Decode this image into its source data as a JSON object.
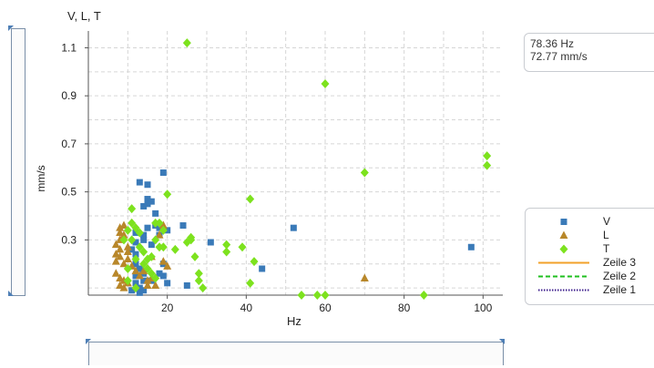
{
  "readout": {
    "frequency": "78.36 Hz",
    "amplitude": "72.77 mm/s"
  },
  "legend": [
    {
      "label": "V",
      "kind": "square",
      "color": "#3a7ab8"
    },
    {
      "label": "L",
      "kind": "triangle",
      "color": "#b8872a"
    },
    {
      "label": "T",
      "kind": "diamond",
      "color": "#7de21e"
    },
    {
      "label": "Zeile 3",
      "kind": "line-solid",
      "color": "#f2a12a"
    },
    {
      "label": "Zeile 2",
      "kind": "line-dashed",
      "color": "#1fbf1f"
    },
    {
      "label": "Zeile 1",
      "kind": "line-dotted",
      "color": "#3c1e8c"
    }
  ],
  "chart_data": {
    "type": "scatter",
    "title": "V, L, T",
    "xlabel": "Hz",
    "ylabel": "mm/s",
    "xlim": [
      0,
      105
    ],
    "ylim": [
      0.07,
      1.17
    ],
    "x_ticks": [
      20,
      40,
      60,
      80,
      100
    ],
    "y_ticks": [
      0.3,
      0.5,
      0.7,
      0.9,
      1.1
    ],
    "grid": true,
    "legend_position": "right",
    "series": [
      {
        "name": "V",
        "marker": "square",
        "color": "#3a7ab8",
        "points": [
          [
            11,
            0.26
          ],
          [
            12,
            0.29
          ],
          [
            12,
            0.33
          ],
          [
            12,
            0.24
          ],
          [
            13,
            0.54
          ],
          [
            14,
            0.44
          ],
          [
            14,
            0.32
          ],
          [
            15,
            0.53
          ],
          [
            15,
            0.47
          ],
          [
            15,
            0.45
          ],
          [
            15,
            0.35
          ],
          [
            14,
            0.3
          ],
          [
            16,
            0.46
          ],
          [
            16,
            0.28
          ],
          [
            17,
            0.41
          ],
          [
            17,
            0.36
          ],
          [
            18,
            0.32
          ],
          [
            18,
            0.35
          ],
          [
            19,
            0.58
          ],
          [
            19,
            0.2
          ],
          [
            20,
            0.34
          ],
          [
            19,
            0.15
          ],
          [
            12,
            0.2
          ],
          [
            13,
            0.18
          ],
          [
            14,
            0.16
          ],
          [
            13,
            0.1
          ],
          [
            14,
            0.09
          ],
          [
            13,
            0.08
          ],
          [
            11,
            0.09
          ],
          [
            12,
            0.12
          ],
          [
            14,
            0.13
          ],
          [
            12,
            0.15
          ],
          [
            16,
            0.13
          ],
          [
            18,
            0.16
          ],
          [
            20,
            0.12
          ],
          [
            24,
            0.36
          ],
          [
            25,
            0.11
          ],
          [
            31,
            0.29
          ],
          [
            44,
            0.18
          ],
          [
            52,
            0.35
          ],
          [
            97,
            0.27
          ]
        ]
      },
      {
        "name": "L",
        "marker": "triangle",
        "color": "#b8872a",
        "points": [
          [
            7,
            0.28
          ],
          [
            7,
            0.24
          ],
          [
            7,
            0.21
          ],
          [
            8,
            0.35
          ],
          [
            8,
            0.33
          ],
          [
            8,
            0.3
          ],
          [
            8,
            0.26
          ],
          [
            8,
            0.23
          ],
          [
            9,
            0.36
          ],
          [
            9,
            0.32
          ],
          [
            9,
            0.2
          ],
          [
            10,
            0.27
          ],
          [
            10,
            0.25
          ],
          [
            10,
            0.22
          ],
          [
            11,
            0.19
          ],
          [
            7,
            0.16
          ],
          [
            8,
            0.14
          ],
          [
            8,
            0.11
          ],
          [
            9,
            0.13
          ],
          [
            9,
            0.1
          ],
          [
            10,
            0.12
          ],
          [
            12,
            0.17
          ],
          [
            13,
            0.15
          ],
          [
            14,
            0.17
          ],
          [
            15,
            0.13
          ],
          [
            16,
            0.14
          ],
          [
            17,
            0.11
          ],
          [
            15,
            0.11
          ],
          [
            16,
            0.23
          ],
          [
            18,
            0.32
          ],
          [
            19,
            0.36
          ],
          [
            19,
            0.21
          ],
          [
            20,
            0.19
          ],
          [
            70,
            0.14
          ]
        ]
      },
      {
        "name": "T",
        "marker": "diamond",
        "color": "#7de21e",
        "points": [
          [
            9,
            0.3
          ],
          [
            10,
            0.34
          ],
          [
            10,
            0.18
          ],
          [
            10,
            0.13
          ],
          [
            11,
            0.43
          ],
          [
            11,
            0.37
          ],
          [
            11,
            0.3
          ],
          [
            12,
            0.35
          ],
          [
            12,
            0.22
          ],
          [
            12,
            0.1
          ],
          [
            13,
            0.33
          ],
          [
            13,
            0.27
          ],
          [
            14,
            0.25
          ],
          [
            14,
            0.2
          ],
          [
            15,
            0.22
          ],
          [
            15,
            0.18
          ],
          [
            16,
            0.23
          ],
          [
            16,
            0.16
          ],
          [
            17,
            0.37
          ],
          [
            17,
            0.3
          ],
          [
            17,
            0.14
          ],
          [
            18,
            0.37
          ],
          [
            18,
            0.27
          ],
          [
            19,
            0.27
          ],
          [
            19,
            0.34
          ],
          [
            20,
            0.49
          ],
          [
            22,
            0.26
          ],
          [
            25,
            1.12
          ],
          [
            25,
            0.29
          ],
          [
            26,
            0.31
          ],
          [
            26,
            0.3
          ],
          [
            27,
            0.23
          ],
          [
            28,
            0.16
          ],
          [
            28,
            0.13
          ],
          [
            29,
            0.1
          ],
          [
            35,
            0.28
          ],
          [
            35,
            0.25
          ],
          [
            39,
            0.27
          ],
          [
            41,
            0.47
          ],
          [
            41,
            0.12
          ],
          [
            42,
            0.21
          ],
          [
            54,
            0.07
          ],
          [
            58,
            0.07
          ],
          [
            60,
            0.07
          ],
          [
            60,
            0.95
          ],
          [
            70,
            0.58
          ],
          [
            85,
            0.07
          ],
          [
            101,
            0.65
          ],
          [
            101,
            0.61
          ]
        ]
      }
    ]
  }
}
